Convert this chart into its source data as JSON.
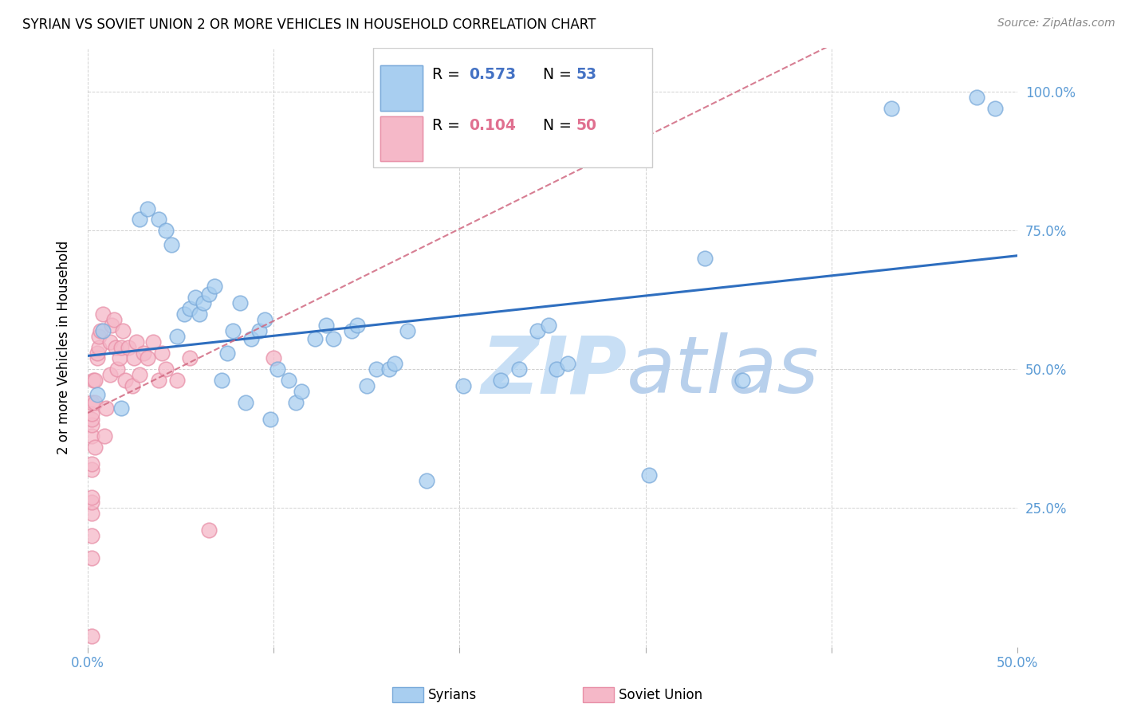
{
  "title": "SYRIAN VS SOVIET UNION 2 OR MORE VEHICLES IN HOUSEHOLD CORRELATION CHART",
  "source": "Source: ZipAtlas.com",
  "ylabel": "2 or more Vehicles in Household",
  "xlim": [
    0.0,
    0.5
  ],
  "ylim": [
    0.0,
    1.08
  ],
  "syrians_x": [
    0.005,
    0.008,
    0.018,
    0.028,
    0.032,
    0.038,
    0.042,
    0.045,
    0.048,
    0.052,
    0.055,
    0.058,
    0.06,
    0.062,
    0.065,
    0.068,
    0.072,
    0.075,
    0.078,
    0.082,
    0.085,
    0.088,
    0.092,
    0.095,
    0.098,
    0.102,
    0.108,
    0.112,
    0.115,
    0.122,
    0.128,
    0.132,
    0.142,
    0.145,
    0.15,
    0.155,
    0.162,
    0.165,
    0.172,
    0.182,
    0.202,
    0.222,
    0.232,
    0.242,
    0.248,
    0.252,
    0.258,
    0.302,
    0.332,
    0.352,
    0.432,
    0.478,
    0.488
  ],
  "syrians_y": [
    0.455,
    0.57,
    0.43,
    0.77,
    0.79,
    0.77,
    0.75,
    0.725,
    0.56,
    0.6,
    0.61,
    0.63,
    0.6,
    0.62,
    0.635,
    0.65,
    0.48,
    0.53,
    0.57,
    0.62,
    0.44,
    0.555,
    0.57,
    0.59,
    0.41,
    0.5,
    0.48,
    0.44,
    0.46,
    0.555,
    0.58,
    0.555,
    0.57,
    0.58,
    0.47,
    0.5,
    0.5,
    0.51,
    0.57,
    0.3,
    0.47,
    0.48,
    0.5,
    0.57,
    0.58,
    0.5,
    0.51,
    0.31,
    0.7,
    0.48,
    0.97,
    0.99,
    0.97
  ],
  "soviet_x": [
    0.002,
    0.002,
    0.002,
    0.002,
    0.002,
    0.002,
    0.002,
    0.002,
    0.002,
    0.002,
    0.002,
    0.002,
    0.002,
    0.003,
    0.004,
    0.004,
    0.004,
    0.005,
    0.005,
    0.006,
    0.006,
    0.007,
    0.008,
    0.009,
    0.01,
    0.012,
    0.012,
    0.013,
    0.014,
    0.015,
    0.016,
    0.017,
    0.018,
    0.019,
    0.02,
    0.022,
    0.024,
    0.025,
    0.026,
    0.028,
    0.03,
    0.032,
    0.035,
    0.038,
    0.04,
    0.042,
    0.048,
    0.055,
    0.065,
    0.1
  ],
  "soviet_y": [
    0.02,
    0.16,
    0.2,
    0.24,
    0.26,
    0.27,
    0.32,
    0.33,
    0.38,
    0.4,
    0.41,
    0.42,
    0.44,
    0.48,
    0.36,
    0.44,
    0.48,
    0.52,
    0.53,
    0.54,
    0.56,
    0.57,
    0.6,
    0.38,
    0.43,
    0.49,
    0.55,
    0.58,
    0.59,
    0.54,
    0.5,
    0.52,
    0.54,
    0.57,
    0.48,
    0.54,
    0.47,
    0.52,
    0.55,
    0.49,
    0.53,
    0.52,
    0.55,
    0.48,
    0.53,
    0.5,
    0.48,
    0.52,
    0.21,
    0.52
  ],
  "R_syrians": 0.573,
  "N_syrians": 53,
  "R_soviet": 0.104,
  "N_soviet": 50,
  "color_syrians": "#A8CEF0",
  "color_soviet": "#F5B8C8",
  "edge_color_syrians": "#7AAADA",
  "edge_color_soviet": "#E890A8",
  "line_color_syrians": "#2E6EBF",
  "line_color_soviet": "#D06880",
  "watermark_zip": "ZIP",
  "watermark_atlas": "atlas",
  "watermark_color": "#C8DFF5",
  "legend_R_color_syrians": "#4472C4",
  "legend_N_color_syrians": "#4472C4",
  "legend_R_color_soviet": "#E07090",
  "legend_N_color_soviet": "#E07090"
}
